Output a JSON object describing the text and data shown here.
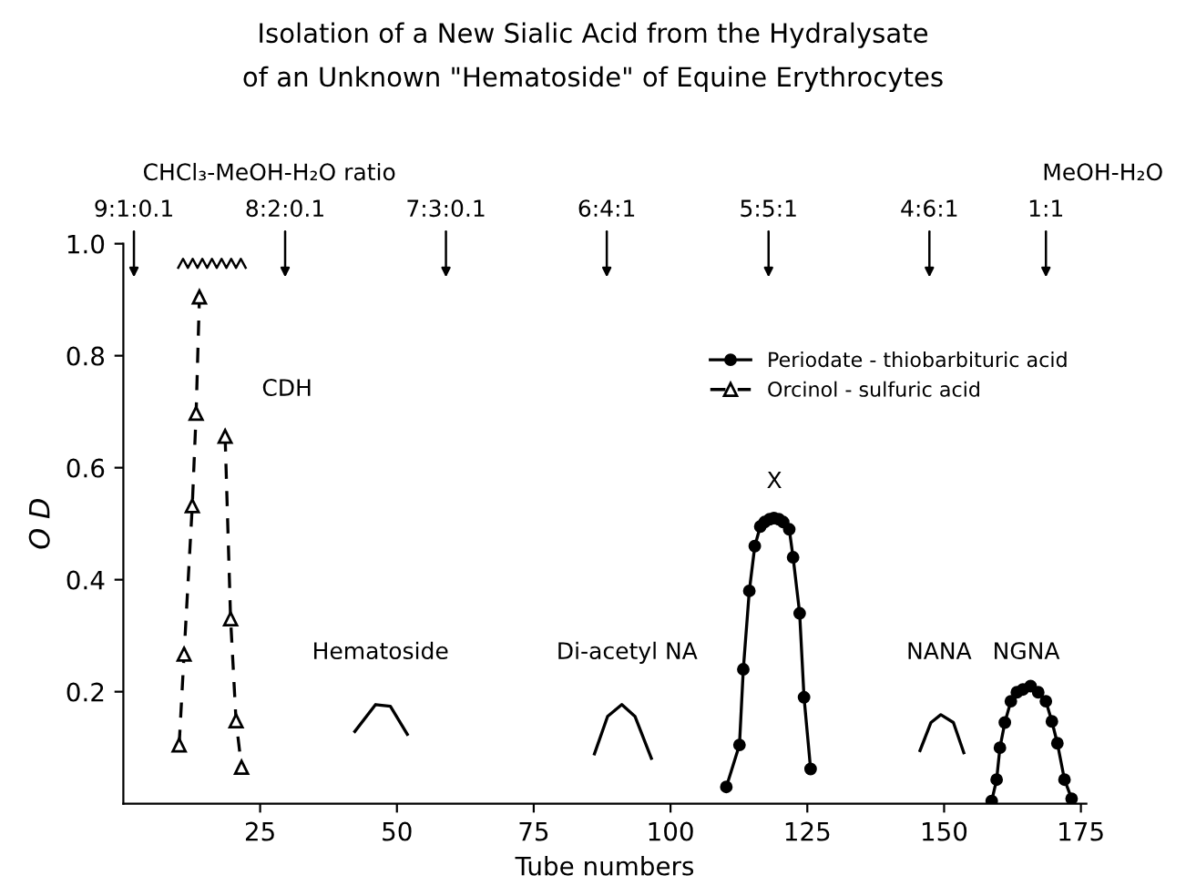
{
  "chart_data": {
    "type": "line",
    "title": "Isolation of a New Sialic Acid from the Hydralysate\nof an Unknown \"Hematoside\" of Equine Erythrocytes",
    "xlabel": "Tube numbers",
    "ylabel": "O D",
    "xlim": [
      0,
      176
    ],
    "xticks": [
      25,
      50,
      75,
      100,
      125,
      150,
      175
    ],
    "ylim": [
      0,
      1.0
    ],
    "yticks": [
      0.2,
      0.4,
      0.6,
      0.8,
      {
        "value": 1.0,
        "label": "1.0"
      }
    ],
    "grid": false,
    "legend": "top right",
    "series": [
      {
        "name": "Periodate - thiobarbituric acid",
        "color": "#000000",
        "marker": "circle",
        "line_style": "solid",
        "x": [
          110.2,
          112.6,
          113.3,
          114.4,
          115.4,
          116.4,
          117.2,
          118.1,
          118.9,
          119.8,
          120.6,
          121.7,
          122.4,
          123.6,
          124.4,
          125.6,
          140,
          158.7,
          159.6,
          160.2,
          161.1,
          162.2,
          163.3,
          164.4,
          165.8,
          167.2,
          168.6,
          169.7,
          170.7,
          172.0,
          173.3
        ],
        "values": [
          0.03,
          0.105,
          0.24,
          0.38,
          0.46,
          0.495,
          0.503,
          0.508,
          0.51,
          0.508,
          0.503,
          0.49,
          0.44,
          0.34,
          0.19,
          0.062,
          null,
          0.005,
          0.043,
          0.1,
          0.145,
          0.183,
          0.199,
          0.204,
          0.21,
          0.199,
          0.183,
          0.147,
          0.108,
          0.043,
          0.009
        ]
      },
      {
        "name": "Orcinol - sulfuric acid",
        "color": "#000000",
        "marker": "triangle",
        "line_style": "dashed",
        "x": [
          10.2,
          11.1,
          12.6,
          13.3,
          13.9
        ],
        "values": [
          0.105,
          0.267,
          0.532,
          0.697,
          0.905
        ]
      },
      {
        "color": "#000000",
        "marker": "triangle",
        "line_style": "dashed",
        "x": [
          18.6,
          19.6,
          20.6,
          21.6
        ],
        "values": [
          0.656,
          0.33,
          0.148,
          0.065
        ]
      },
      {
        "color": "#000000",
        "marker": "none",
        "line_style": "solid",
        "x": [
          42.3,
          46.1,
          48.8,
          51.9
        ],
        "values": [
          0.129,
          0.177,
          0.174,
          0.124
        ]
      },
      {
        "color": "#000000",
        "marker": "none",
        "line_style": "solid",
        "x": [
          86.1,
          88.5,
          91.1,
          93.5,
          96.5
        ],
        "values": [
          0.089,
          0.156,
          0.177,
          0.156,
          0.081
        ]
      },
      {
        "color": "#000000",
        "marker": "none",
        "line_style": "solid",
        "x": [
          145.6,
          147.6,
          149.4,
          151.7,
          153.6
        ],
        "values": [
          0.095,
          0.145,
          0.159,
          0.145,
          0.091
        ]
      }
    ],
    "annotations": [
      "CDH",
      "Hematoside",
      "Di-acetyl NA",
      "X",
      "NANA",
      "NGNA",
      "9:1:0.1",
      "8:2:0.1",
      "7:3:0.1",
      "6:4:1",
      "5:5:1",
      "4:6:1",
      "1:1",
      "CHCl₃-MeOH-H₂O ratio",
      "MeOH-H₂O"
    ]
  }
}
